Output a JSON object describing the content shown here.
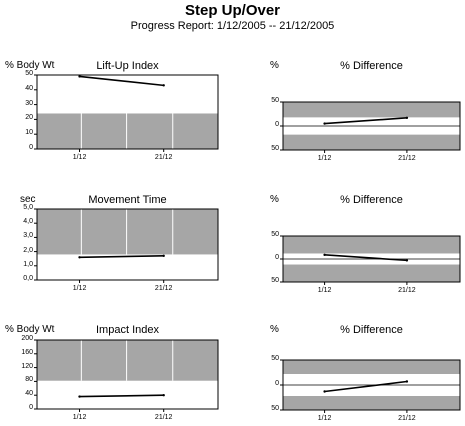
{
  "header": {
    "title": "Step Up/Over",
    "subtitle": "Progress Report: 1/12/2005 -- 21/12/2005"
  },
  "colors": {
    "band": "#a6a6a6",
    "grid": "#ffffff",
    "line": "#000000"
  },
  "chart_data": [
    {
      "type": "line",
      "title": "Lift-Up Index",
      "ylabel": "% Body Wt",
      "yticks": [
        "50",
        "40",
        "30",
        "20",
        "10",
        "0"
      ],
      "ylim": [
        0,
        50
      ],
      "xticks": [
        "1/12",
        "21/12"
      ],
      "shaded_range": [
        0,
        24
      ],
      "x": [
        "1/12",
        "21/12"
      ],
      "values": [
        49,
        43
      ]
    },
    {
      "type": "line",
      "title": "% Difference",
      "ylabel": "%",
      "yticks": [
        "50",
        "0",
        "50"
      ],
      "ylim": [
        -50,
        50
      ],
      "xticks": [
        "1/12",
        "21/12"
      ],
      "shaded_range": [
        [
          -50,
          -18
        ],
        [
          18,
          50
        ]
      ],
      "x": [
        "1/12",
        "21/12"
      ],
      "values": [
        5,
        17
      ]
    },
    {
      "type": "line",
      "title": "Movement Time",
      "ylabel": "sec",
      "yticks": [
        "5,0",
        "4,0",
        "3,0",
        "2,0",
        "1,0",
        "0,0"
      ],
      "ylim": [
        0,
        5
      ],
      "xticks": [
        "1/12",
        "21/12"
      ],
      "shaded_range": [
        1.8,
        5
      ],
      "x": [
        "1/12",
        "21/12"
      ],
      "values": [
        1.6,
        1.7
      ]
    },
    {
      "type": "line",
      "title": "% Difference",
      "ylabel": "%",
      "yticks": [
        "50",
        "0",
        "50"
      ],
      "ylim": [
        -50,
        50
      ],
      "xticks": [
        "1/12",
        "21/12"
      ],
      "shaded_range": [
        [
          -50,
          -12
        ],
        [
          12,
          50
        ]
      ],
      "x": [
        "1/12",
        "21/12"
      ],
      "values": [
        9,
        -3
      ]
    },
    {
      "type": "line",
      "title": "Impact Index",
      "ylabel": "% Body Wt",
      "yticks": [
        "200",
        "160",
        "120",
        "80",
        "40",
        "0"
      ],
      "ylim": [
        0,
        200
      ],
      "xticks": [
        "1/12",
        "21/12"
      ],
      "shaded_range": [
        82,
        200
      ],
      "x": [
        "1/12",
        "21/12"
      ],
      "values": [
        36,
        40
      ]
    },
    {
      "type": "line",
      "title": "% Difference",
      "ylabel": "%",
      "yticks": [
        "50",
        "0",
        "50"
      ],
      "ylim": [
        -50,
        50
      ],
      "xticks": [
        "1/12",
        "21/12"
      ],
      "shaded_range": [
        [
          -50,
          -22
        ],
        [
          22,
          50
        ]
      ],
      "x": [
        "1/12",
        "21/12"
      ],
      "values": [
        -13,
        7
      ]
    }
  ]
}
